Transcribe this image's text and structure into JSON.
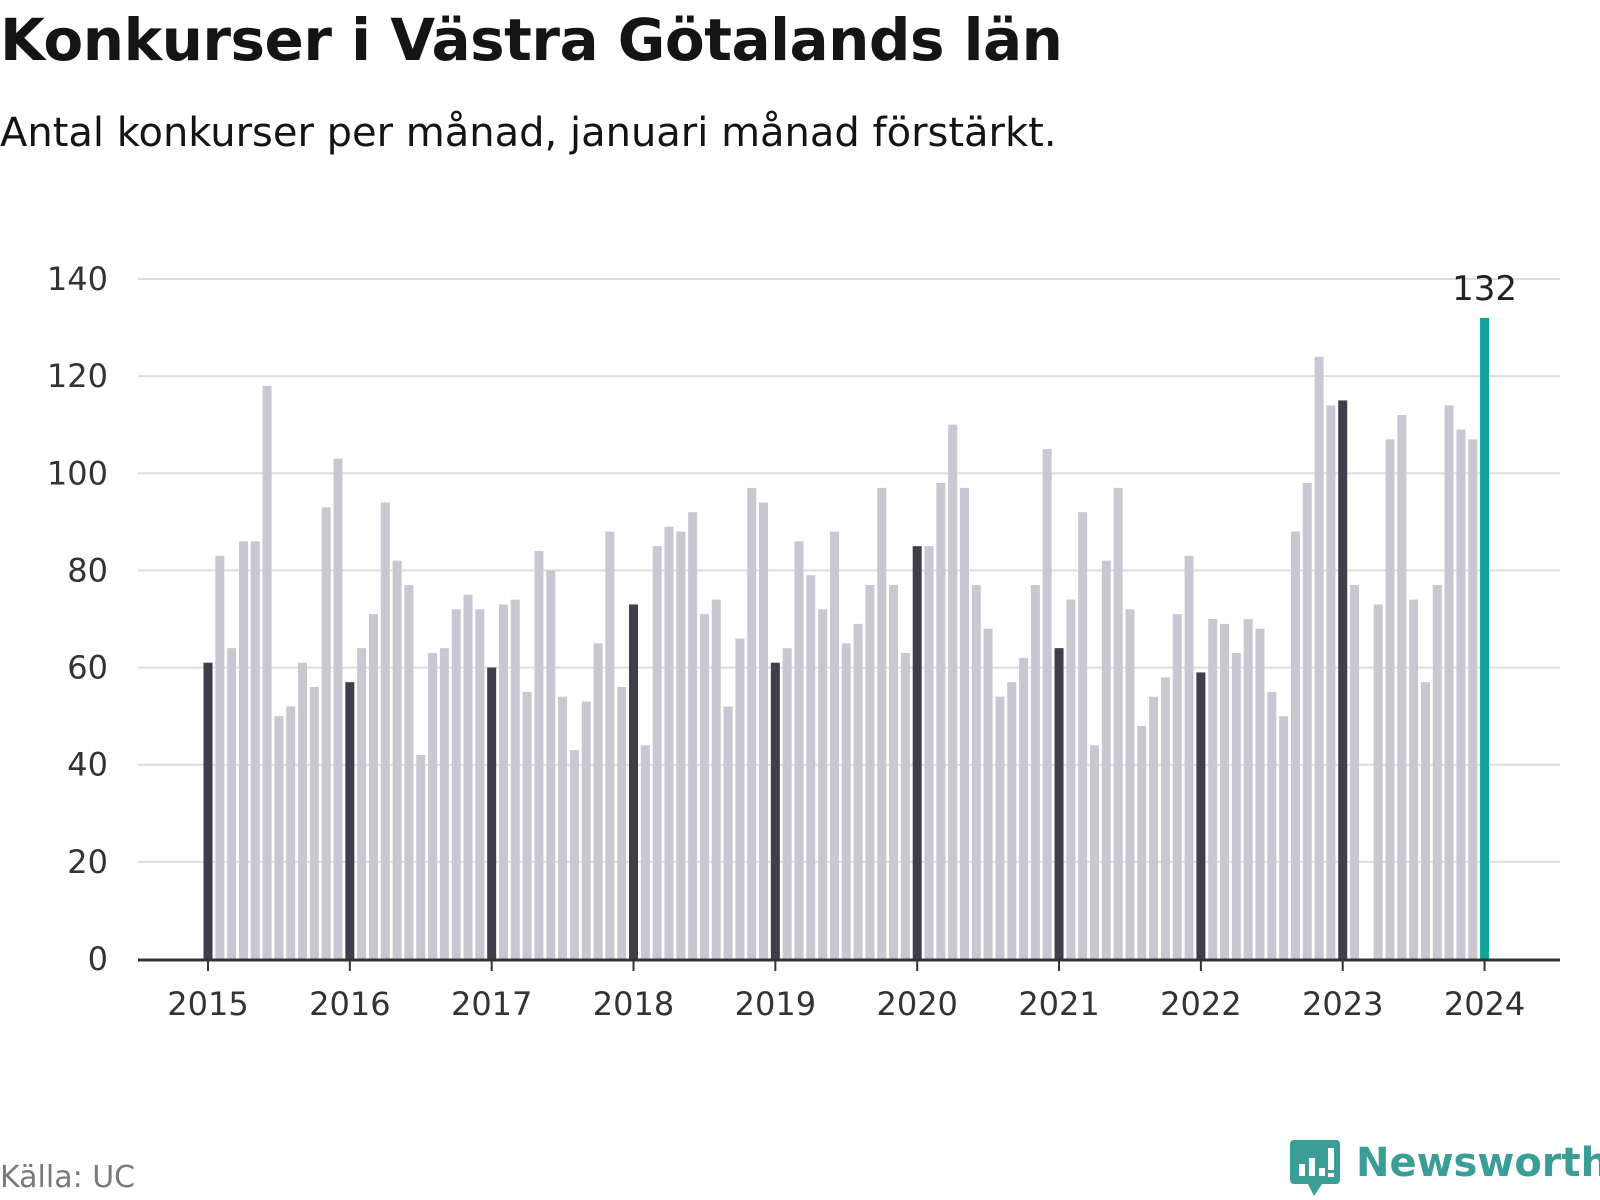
{
  "title": "Konkurser i Västra Götalands län",
  "subtitle": "Antal konkurser per månad, januari månad förstärkt.",
  "source": "Källa: UC",
  "logo": {
    "text": "Newsworthy",
    "icon": "newsworthy-logo-icon",
    "color": "#3a9e96"
  },
  "chart_data": {
    "type": "bar",
    "title": "Konkurser i Västra Götalands län",
    "subtitle": "Antal konkurser per månad, januari månad förstärkt.",
    "xlabel": "",
    "ylabel": "",
    "ylim": [
      0,
      140
    ],
    "y_ticks": [
      "0",
      "20",
      "40",
      "60",
      "80",
      "100",
      "120",
      "140"
    ],
    "x_tick_labels": [
      "2015",
      "2016",
      "2017",
      "2018",
      "2019",
      "2020",
      "2021",
      "2022",
      "2023",
      "2024"
    ],
    "grid": true,
    "start": "2015-01",
    "end": "2024-01",
    "series": [
      {
        "values": [
          61,
          83,
          64,
          86,
          86,
          118,
          50,
          52,
          61,
          56,
          93,
          103,
          57,
          64,
          71,
          94,
          82,
          77,
          42,
          63,
          64,
          72,
          75,
          72,
          60,
          73,
          74,
          55,
          84,
          80,
          54,
          43,
          53,
          65,
          88,
          56,
          73,
          44,
          85,
          89,
          88,
          92,
          71,
          74,
          52,
          66,
          97,
          94,
          61,
          64,
          86,
          79,
          72,
          88,
          65,
          69,
          77,
          97,
          77,
          63,
          85,
          85,
          98,
          110,
          97,
          77,
          68,
          54,
          57,
          62,
          77,
          105,
          64,
          74,
          92,
          44,
          82,
          97,
          72,
          48,
          54,
          58,
          71,
          83,
          59,
          70,
          69,
          63,
          70,
          68,
          55,
          50,
          88,
          98,
          124,
          114,
          115,
          77,
          0,
          73,
          107,
          112,
          74,
          57,
          77,
          114,
          109,
          107,
          132
        ]
      }
    ],
    "colors": {
      "bar": "#c8c8d2",
      "january": "#3f3f4c",
      "latest": "#12a39a",
      "grid": "#dddddd",
      "axis": "#333333"
    },
    "annotations": [
      {
        "date": "2024-01",
        "label": "132"
      }
    ]
  }
}
